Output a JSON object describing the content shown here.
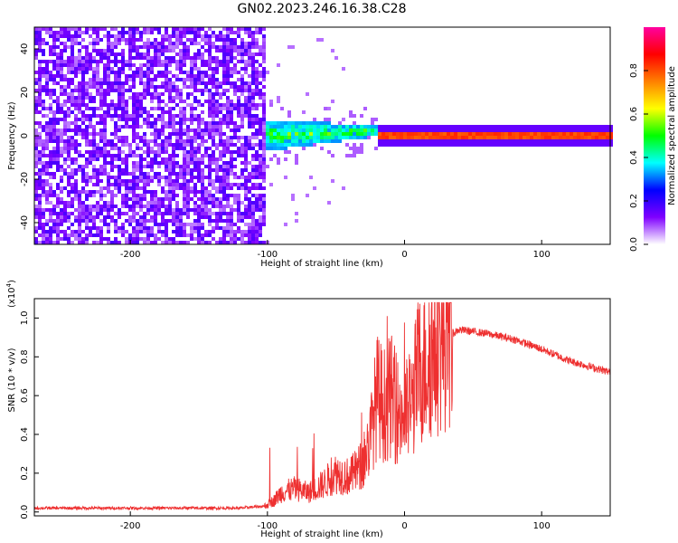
{
  "title": "GN02.2023.246.16.38.C28",
  "chart_data": [
    {
      "type": "heatmap",
      "name": "spectrogram",
      "xlabel": "Height of straight line (km)",
      "ylabel": "Frequency (Hz)",
      "xlim": [
        -270,
        150
      ],
      "ylim": [
        -50,
        50
      ],
      "xticks": [
        -200,
        -100,
        0,
        100
      ],
      "xtick_labels": [
        "-200",
        "-100",
        "0",
        "100"
      ],
      "yticks": [
        -40,
        -20,
        0,
        20,
        40
      ],
      "ytick_labels": [
        "-40",
        "-20",
        "0",
        "20",
        "40"
      ],
      "colorbar": {
        "label": "Normalized spectral amplitude",
        "range": [
          0,
          1
        ],
        "ticks": [
          0.0,
          0.2,
          0.4,
          0.6,
          0.8
        ],
        "tick_labels": [
          "0.0",
          "0.2",
          "0.4",
          "0.6",
          "0.8"
        ],
        "colors": [
          "#ffffff",
          "#7f00ff",
          "#0000ff",
          "#00ffff",
          "#00ff00",
          "#ffff00",
          "#ff8000",
          "#ff0000",
          "#ff00a0"
        ]
      },
      "regions": [
        {
          "x_range": [
            -270,
            -102
          ],
          "description": "broadband noise",
          "amplitude": 0.12
        },
        {
          "x_range": [
            -102,
            -20
          ],
          "center_freq": 0,
          "description": "widening band",
          "amplitude": 0.45
        },
        {
          "x_range": [
            -20,
            150
          ],
          "center_freq": 0,
          "description": "narrow strong line",
          "amplitude": 0.8
        }
      ]
    },
    {
      "type": "line",
      "name": "snr",
      "xlabel": "Height of straight line (km)",
      "ylabel": "SNR (10 * v/v)",
      "y_multiplier": "(x10",
      "y_multiplier_exp": "4",
      "y_multiplier_close": ")",
      "xlim": [
        -270,
        150
      ],
      "ylim": [
        -0.02,
        1.1
      ],
      "xticks": [
        -200,
        -100,
        0,
        100
      ],
      "xtick_labels": [
        "-200",
        "-100",
        "0",
        "100"
      ],
      "yticks": [
        0.0,
        0.2,
        0.4,
        0.6,
        0.8,
        1.0
      ],
      "ytick_labels": [
        "0.0",
        "0.2",
        "0.4",
        "0.6",
        "0.8",
        "1.0"
      ],
      "color": "#ee3030",
      "series": [
        {
          "name": "SNR envelope",
          "x": [
            -270,
            -200,
            -120,
            -102,
            -95,
            -90,
            -80,
            -70,
            -60,
            -50,
            -40,
            -30,
            -25,
            -20,
            -15,
            -10,
            -5,
            0,
            5,
            10,
            20,
            30,
            40,
            60,
            80,
            100,
            120,
            150
          ],
          "y": [
            0.02,
            0.02,
            0.02,
            0.03,
            0.06,
            0.1,
            0.12,
            0.1,
            0.14,
            0.2,
            0.18,
            0.25,
            0.38,
            0.6,
            0.55,
            0.6,
            0.52,
            0.5,
            0.55,
            0.72,
            0.82,
            0.9,
            0.94,
            0.92,
            0.89,
            0.84,
            0.78,
            0.72
          ]
        }
      ]
    }
  ]
}
